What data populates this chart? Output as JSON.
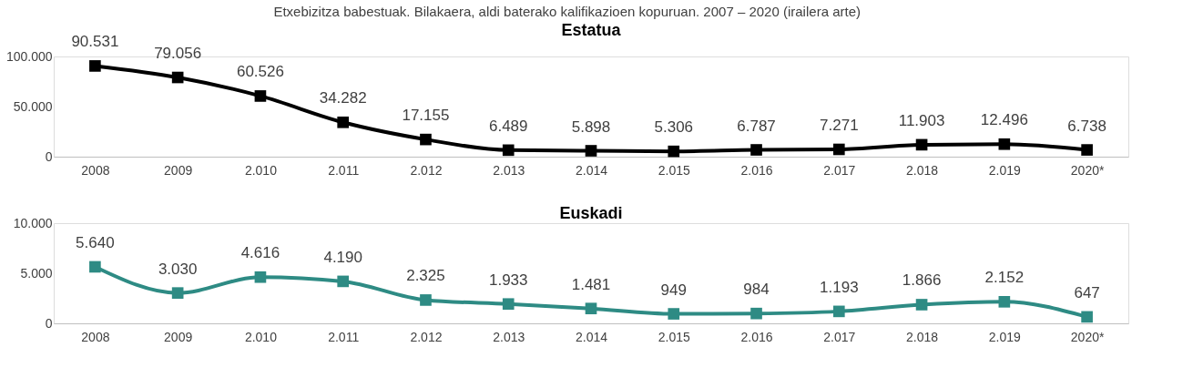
{
  "chart_data": [
    {
      "type": "line",
      "title": "Estatua",
      "annotations": [
        "Etxebizitza babestuak. Bilakaera, aldi baterako kalifikazioen kopuruan. 2007 – 2020 (irailera arte)"
      ],
      "categories": [
        "2008",
        "2009",
        "2.010",
        "2.011",
        "2.012",
        "2.013",
        "2.014",
        "2.015",
        "2.016",
        "2.017",
        "2.018",
        "2.019",
        "2020*"
      ],
      "series": [
        {
          "color": "#000000",
          "values": [
            90531,
            79056,
            60526,
            34282,
            17155,
            6489,
            5898,
            5306,
            6787,
            7271,
            11903,
            12496,
            6738
          ],
          "value_labels": [
            "90.531",
            "79.056",
            "60.526",
            "34.282",
            "17.155",
            "6.489",
            "5.898",
            "5.306",
            "6.787",
            "7.271",
            "11.903",
            "12.496",
            "6.738"
          ]
        }
      ],
      "ylim": [
        0,
        100000
      ],
      "yticks": [
        0,
        {
          "value": 50000,
          "label": "50.000"
        },
        {
          "value": 100000,
          "label": "100.000"
        }
      ],
      "marker": "square",
      "grid": false
    },
    {
      "type": "line",
      "title": "Euskadi",
      "categories": [
        "2008",
        "2009",
        "2.010",
        "2.011",
        "2.012",
        "2.013",
        "2.014",
        "2.015",
        "2.016",
        "2.017",
        "2.018",
        "2.019",
        "2020*"
      ],
      "series": [
        {
          "color": "#2e8b84",
          "values": [
            5640,
            3030,
            4616,
            4190,
            2325,
            1933,
            1481,
            949,
            984,
            1193,
            1866,
            2152,
            647
          ],
          "value_labels": [
            "5.640",
            "3.030",
            "4.616",
            "4.190",
            "2.325",
            "1.933",
            "1.481",
            "949",
            "984",
            "1.193",
            "1.866",
            "2.152",
            "647"
          ]
        }
      ],
      "ylim": [
        0,
        10000
      ],
      "yticks": [
        0,
        {
          "value": 5000,
          "label": "5.000"
        },
        {
          "value": 10000,
          "label": "10.000"
        }
      ],
      "marker": "square",
      "grid": false
    }
  ]
}
